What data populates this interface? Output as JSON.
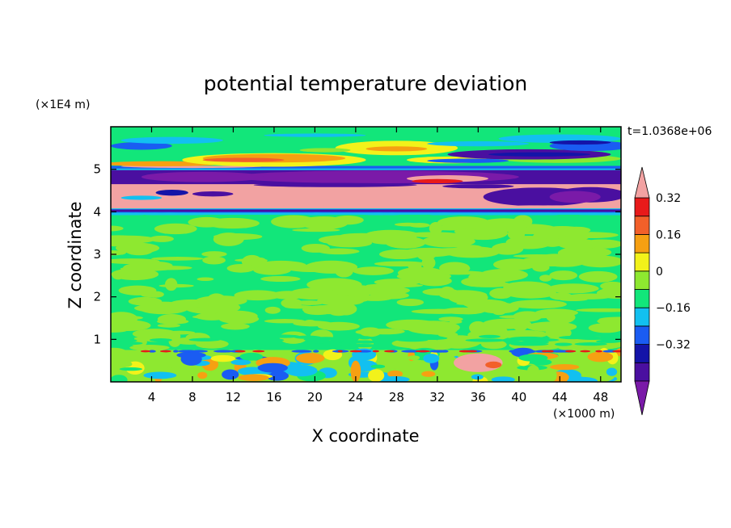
{
  "chart_data": {
    "type": "heatmap",
    "title": "potential temperature deviation",
    "xlabel": "X coordinate",
    "ylabel": "Z coordinate",
    "x_unit": "(×1000 m)",
    "y_unit": "(×1E4 m)",
    "time_label": "t=1.0368e+06",
    "xlim": [
      0,
      50
    ],
    "ylim": [
      0,
      6
    ],
    "x_ticks": [
      4,
      8,
      12,
      16,
      20,
      24,
      28,
      32,
      36,
      40,
      44,
      48
    ],
    "y_ticks": [
      1,
      2,
      3,
      4,
      5
    ],
    "colorbar": {
      "levels": [
        -0.48,
        -0.4,
        -0.32,
        -0.24,
        -0.16,
        -0.08,
        0,
        0.08,
        0.16,
        0.24,
        0.32,
        0.4
      ],
      "labels": [
        "0.32",
        "0.16",
        "0",
        "-0.16",
        "-0.32"
      ],
      "label_values": [
        0.32,
        0.16,
        0,
        -0.16,
        -0.32
      ],
      "colors_low_to_high": [
        "#7a1aa8",
        "#4a0fa0",
        "#1414a8",
        "#1a5cf2",
        "#12c0f0",
        "#12e67a",
        "#8ee830",
        "#f2f21a",
        "#f6a012",
        "#f2602a",
        "#e81a1a",
        "#f2a2a2"
      ],
      "extend": "both"
    },
    "field_description_bands": [
      {
        "z_range": [
          5.6,
          5.8
        ],
        "dominant": "cyan"
      },
      {
        "z_range": [
          5.05,
          5.55
        ],
        "dominant": "yellow/orange ripple over green"
      },
      {
        "z_range": [
          4.65,
          5.05
        ],
        "dominant": "purple/blue"
      },
      {
        "z_range": [
          4.1,
          4.65
        ],
        "dominant": "pink"
      },
      {
        "z_range": [
          3.9,
          4.1
        ],
        "dominant": "blue/cyan"
      },
      {
        "z_range": [
          0.75,
          3.9
        ],
        "dominant": "green mix"
      },
      {
        "z_range": [
          0,
          0.75
        ],
        "dominant": "mixed boundary layer"
      }
    ]
  }
}
